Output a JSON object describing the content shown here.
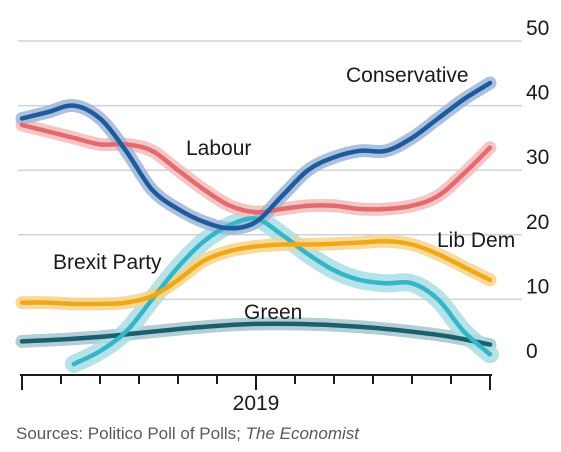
{
  "chart_data": {
    "type": "line",
    "title": "",
    "xlabel": "",
    "ylabel": "",
    "ylim": [
      0,
      50
    ],
    "yticks": [
      0,
      10,
      20,
      30,
      40,
      50
    ],
    "y_axis_position": "right",
    "grid": true,
    "x_tick_label": "2019",
    "x_range": [
      0,
      36
    ],
    "x_ticks": [
      0,
      3,
      6,
      9,
      12,
      15,
      18,
      21,
      24,
      27,
      30,
      33,
      36
    ],
    "x_label_at": 18,
    "series": [
      {
        "name": "Conservative",
        "color": "#1f5a9b",
        "band": "#9db6d9",
        "x": [
          0,
          2,
          4,
          6,
          8,
          10,
          12,
          14,
          16,
          18,
          20,
          22,
          24,
          26,
          28,
          30,
          32,
          34,
          36
        ],
        "values": [
          38,
          39,
          40,
          38,
          33,
          27,
          24,
          22,
          21,
          22,
          26,
          30,
          32,
          33,
          33,
          35,
          38,
          41,
          43.5
        ]
      },
      {
        "name": "Labour",
        "color": "#e36a6f",
        "band": "#f4bcbd",
        "x": [
          0,
          2,
          4,
          6,
          8,
          10,
          12,
          14,
          16,
          18,
          20,
          22,
          24,
          26,
          28,
          30,
          32,
          34,
          36
        ],
        "values": [
          37,
          36,
          35,
          34,
          34,
          33,
          30,
          27,
          24.5,
          23.5,
          24,
          24.5,
          24.5,
          24,
          24,
          24.5,
          26,
          29.5,
          33.5
        ]
      },
      {
        "name": "Lib Dem",
        "color": "#f0a81a",
        "band": "#f7d58a",
        "x": [
          0,
          2,
          4,
          6,
          8,
          10,
          12,
          14,
          16,
          18,
          20,
          22,
          24,
          26,
          28,
          30,
          32,
          34,
          36
        ],
        "values": [
          9.5,
          9.5,
          9.3,
          9.3,
          9.5,
          10.5,
          13,
          16,
          17.5,
          18.2,
          18.5,
          18.5,
          18.6,
          18.8,
          19,
          18.5,
          17,
          15,
          13
        ]
      },
      {
        "name": "Brexit Party",
        "color": "#34b6c9",
        "band": "#a9dde5",
        "x": [
          4,
          6,
          8,
          10,
          12,
          14,
          16,
          18,
          20,
          22,
          24,
          26,
          28,
          30,
          32,
          34,
          36
        ],
        "values": [
          0,
          2,
          5,
          10,
          15,
          19,
          21.5,
          22.5,
          20,
          17,
          14.5,
          13,
          12.5,
          12.5,
          10,
          5,
          1.5
        ]
      },
      {
        "name": "Green",
        "color": "#1b5f6e",
        "band": "#a6c5cc",
        "x": [
          0,
          3,
          6,
          9,
          12,
          15,
          18,
          21,
          24,
          27,
          30,
          33,
          36
        ],
        "values": [
          3.5,
          3.8,
          4.2,
          4.8,
          5.4,
          5.9,
          6.2,
          6.2,
          6,
          5.6,
          5,
          4.2,
          3
        ]
      }
    ],
    "labels": {
      "Conservative": "Conservative",
      "Labour": "Labour",
      "Lib Dem": "Lib Dem",
      "Brexit Party": "Brexit Party",
      "Green": "Green"
    }
  },
  "footer": {
    "source_prefix": "Sources: Politico Poll of Polls; ",
    "source_italic": "The Economist"
  }
}
